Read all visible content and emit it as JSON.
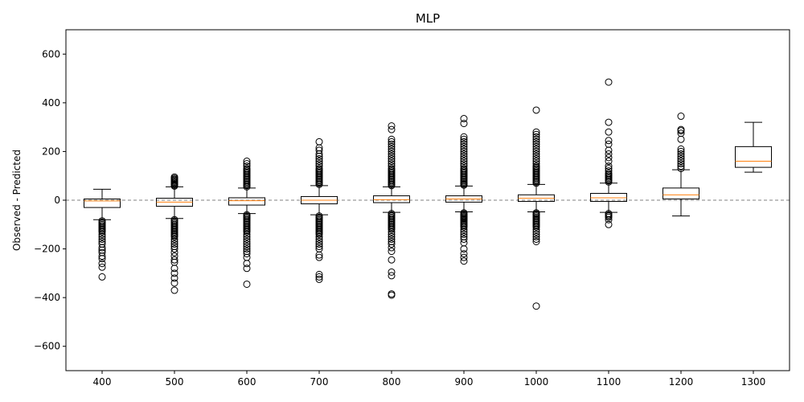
{
  "chart_data": {
    "type": "box",
    "title": "MLP",
    "xlabel": "",
    "ylabel": "Observed - Predicted",
    "ylim": [
      -700,
      700
    ],
    "yticks": [
      -600,
      -400,
      -200,
      0,
      200,
      400,
      600
    ],
    "ytick_labels": [
      "−600",
      "−400",
      "−200",
      "0",
      "200",
      "400",
      "600"
    ],
    "reference_line": {
      "y": 0,
      "style": "dashed",
      "color": "#808080"
    },
    "colors": {
      "box": "#000000",
      "median": "#ff7f0e"
    },
    "categories": [
      "400",
      "500",
      "600",
      "700",
      "800",
      "900",
      "1000",
      "1100",
      "1200",
      "1300"
    ],
    "boxes": [
      {
        "label": "400",
        "whislo": -80,
        "q1": -30,
        "med": -3,
        "q3": 5,
        "whishi": 45,
        "fliers_low": [
          -85,
          -90,
          -95,
          -100,
          -105,
          -110,
          -115,
          -120,
          -125,
          -130,
          -140,
          -150,
          -160,
          -170,
          -180,
          -195,
          -205,
          -215,
          -230,
          -240,
          -260,
          -275,
          -315
        ],
        "fliers_high": []
      },
      {
        "label": "500",
        "whislo": -75,
        "q1": -25,
        "med": -8,
        "q3": 8,
        "whishi": 55,
        "fliers_low": [
          -80,
          -85,
          -90,
          -95,
          -100,
          -105,
          -110,
          -115,
          -120,
          -125,
          -130,
          -135,
          -140,
          -145,
          -150,
          -160,
          -170,
          -180,
          -190,
          -200,
          -215,
          -230,
          -245,
          -255,
          -280,
          -300,
          -320,
          -340,
          -370
        ],
        "fliers_high": [
          58,
          62,
          66,
          70,
          74,
          78,
          82,
          86,
          90,
          95
        ]
      },
      {
        "label": "600",
        "whislo": -55,
        "q1": -20,
        "med": -2,
        "q3": 10,
        "whishi": 50,
        "fliers_low": [
          -60,
          -65,
          -70,
          -75,
          -80,
          -85,
          -90,
          -95,
          -100,
          -105,
          -110,
          -115,
          -120,
          -125,
          -130,
          -140,
          -150,
          -160,
          -170,
          -180,
          -190,
          -200,
          -210,
          -220,
          -235,
          -260,
          -280,
          -345
        ],
        "fliers_high": [
          55,
          60,
          65,
          70,
          75,
          80,
          85,
          90,
          95,
          100,
          105,
          110,
          115,
          120,
          125,
          130,
          140,
          150,
          160
        ]
      },
      {
        "label": "700",
        "whislo": -60,
        "q1": -15,
        "med": 0,
        "q3": 15,
        "whishi": 60,
        "fliers_low": [
          -65,
          -70,
          -75,
          -80,
          -85,
          -90,
          -95,
          -100,
          -105,
          -110,
          -115,
          -120,
          -125,
          -130,
          -135,
          -140,
          -150,
          -160,
          -170,
          -180,
          -190,
          -200,
          -225,
          -235,
          -305,
          -315,
          -325
        ],
        "fliers_high": [
          65,
          70,
          75,
          80,
          85,
          90,
          95,
          100,
          105,
          110,
          115,
          120,
          125,
          130,
          140,
          150,
          160,
          170,
          180,
          190,
          205,
          215,
          240
        ]
      },
      {
        "label": "800",
        "whislo": -50,
        "q1": -10,
        "med": 2,
        "q3": 18,
        "whishi": 55,
        "fliers_low": [
          -55,
          -60,
          -65,
          -70,
          -75,
          -80,
          -85,
          -90,
          -95,
          -100,
          -105,
          -110,
          -115,
          -120,
          -130,
          -140,
          -150,
          -160,
          -170,
          -180,
          -195,
          -210,
          -245,
          -295,
          -310,
          -385,
          -390
        ],
        "fliers_high": [
          60,
          65,
          70,
          75,
          80,
          85,
          90,
          95,
          100,
          105,
          110,
          115,
          120,
          125,
          130,
          140,
          150,
          160,
          170,
          180,
          190,
          200,
          210,
          220,
          230,
          240,
          250,
          290,
          305
        ]
      },
      {
        "label": "900",
        "whislo": -48,
        "q1": -8,
        "med": 5,
        "q3": 18,
        "whishi": 58,
        "fliers_low": [
          -52,
          -56,
          -60,
          -64,
          -68,
          -72,
          -76,
          -80,
          -85,
          -90,
          -95,
          -100,
          -105,
          -110,
          -120,
          -130,
          -140,
          -150,
          -160,
          -175,
          -200,
          -220,
          -235,
          -250
        ],
        "fliers_high": [
          62,
          66,
          70,
          75,
          80,
          85,
          90,
          95,
          100,
          105,
          110,
          115,
          120,
          125,
          130,
          140,
          150,
          160,
          170,
          180,
          190,
          200,
          210,
          220,
          230,
          240,
          250,
          260,
          315,
          335
        ]
      },
      {
        "label": "1000",
        "whislo": -48,
        "q1": -5,
        "med": 8,
        "q3": 22,
        "whishi": 65,
        "fliers_low": [
          -52,
          -56,
          -60,
          -65,
          -70,
          -75,
          -80,
          -85,
          -90,
          -95,
          -100,
          -105,
          -110,
          -120,
          -130,
          -140,
          -150,
          -160,
          -170,
          -435
        ],
        "fliers_high": [
          70,
          75,
          80,
          85,
          90,
          95,
          100,
          105,
          110,
          115,
          120,
          125,
          130,
          135,
          140,
          150,
          160,
          170,
          180,
          190,
          200,
          210,
          220,
          230,
          240,
          250,
          260,
          270,
          280,
          370
        ]
      },
      {
        "label": "1100",
        "whislo": -50,
        "q1": -5,
        "med": 10,
        "q3": 28,
        "whishi": 70,
        "fliers_low": [
          -55,
          -60,
          -65,
          -70,
          -80,
          -100
        ],
        "fliers_high": [
          75,
          80,
          85,
          90,
          95,
          100,
          105,
          110,
          120,
          130,
          140,
          160,
          175,
          190,
          205,
          230,
          245,
          280,
          320,
          485
        ]
      },
      {
        "label": "1200",
        "whislo": -65,
        "q1": 5,
        "med": 22,
        "q3": 50,
        "whishi": 125,
        "fliers_low": [],
        "fliers_high": [
          130,
          140,
          150,
          160,
          170,
          180,
          190,
          200,
          210,
          250,
          275,
          285,
          290,
          345
        ]
      },
      {
        "label": "1300",
        "whislo": 115,
        "q1": 135,
        "med": 160,
        "q3": 220,
        "whishi": 320,
        "fliers_low": [],
        "fliers_high": []
      }
    ]
  }
}
